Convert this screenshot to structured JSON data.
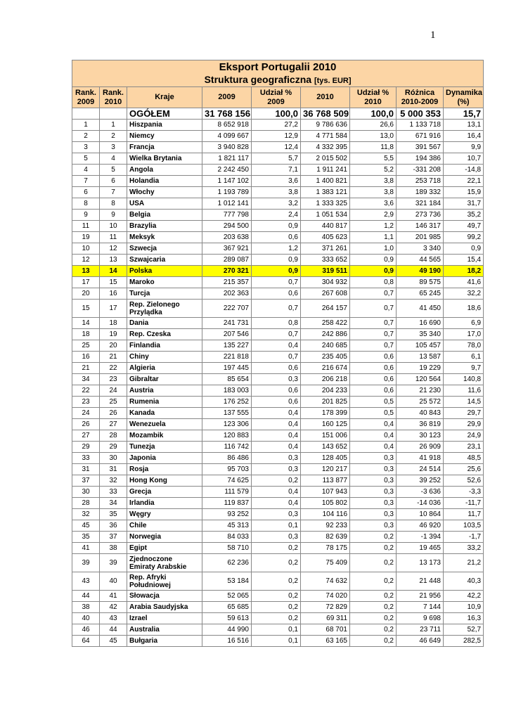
{
  "page_number": "1",
  "table": {
    "title": "Eksport Portugalii 2010",
    "subtitle": "Struktura geograficzna",
    "unit": "[tys. EUR]",
    "headers": [
      "Rank. 2009",
      "Rank. 2010",
      "Kraje",
      "2009",
      "Udział % 2009",
      "2010",
      "Udział % 2010",
      "Różnica 2010-2009",
      "Dynamika (%)"
    ],
    "total": [
      "",
      "",
      "OGÓŁEM",
      "31 768 156",
      "100,0",
      "36 768 509",
      "100,0",
      "5 000 353",
      "15,7"
    ],
    "highlight_color": "#ffff00",
    "header_color": "#fcd5a5",
    "highlight_country": "Polska",
    "rows": [
      [
        "1",
        "1",
        "Hiszpania",
        "8 652 918",
        "27,2",
        "9 786 636",
        "26,6",
        "1 133 718",
        "13,1"
      ],
      [
        "2",
        "2",
        "Niemcy",
        "4 099 667",
        "12,9",
        "4 771 584",
        "13,0",
        "671 916",
        "16,4"
      ],
      [
        "3",
        "3",
        "Francja",
        "3 940 828",
        "12,4",
        "4 332 395",
        "11,8",
        "391 567",
        "9,9"
      ],
      [
        "5",
        "4",
        "Wielka Brytania",
        "1 821 117",
        "5,7",
        "2 015 502",
        "5,5",
        "194 386",
        "10,7"
      ],
      [
        "4",
        "5",
        "Angola",
        "2 242 450",
        "7,1",
        "1 911 241",
        "5,2",
        "-331 208",
        "-14,8"
      ],
      [
        "7",
        "6",
        "Holandia",
        "1 147 102",
        "3,6",
        "1 400 821",
        "3,8",
        "253 718",
        "22,1"
      ],
      [
        "6",
        "7",
        "Włochy",
        "1 193 789",
        "3,8",
        "1 383 121",
        "3,8",
        "189 332",
        "15,9"
      ],
      [
        "8",
        "8",
        "USA",
        "1 012 141",
        "3,2",
        "1 333 325",
        "3,6",
        "321 184",
        "31,7"
      ],
      [
        "9",
        "9",
        "Belgia",
        "777 798",
        "2,4",
        "1 051 534",
        "2,9",
        "273 736",
        "35,2"
      ],
      [
        "11",
        "10",
        "Brazylia",
        "294 500",
        "0,9",
        "440 817",
        "1,2",
        "146 317",
        "49,7"
      ],
      [
        "19",
        "11",
        "Meksyk",
        "203 638",
        "0,6",
        "405 623",
        "1,1",
        "201 985",
        "99,2"
      ],
      [
        "10",
        "12",
        "Szwecja",
        "367 921",
        "1,2",
        "371 261",
        "1,0",
        "3 340",
        "0,9"
      ],
      [
        "12",
        "13",
        "Szwajcaria",
        "289 087",
        "0,9",
        "333 652",
        "0,9",
        "44 565",
        "15,4"
      ],
      [
        "13",
        "14",
        "Polska",
        "270 321",
        "0,9",
        "319 511",
        "0,9",
        "49 190",
        "18,2"
      ],
      [
        "17",
        "15",
        "Maroko",
        "215 357",
        "0,7",
        "304 932",
        "0,8",
        "89 575",
        "41,6"
      ],
      [
        "20",
        "16",
        "Turcja",
        "202 363",
        "0,6",
        "267 608",
        "0,7",
        "65 245",
        "32,2"
      ],
      [
        "15",
        "17",
        "Rep. Zielonego Przylądka",
        "222 707",
        "0,7",
        "264 157",
        "0,7",
        "41 450",
        "18,6"
      ],
      [
        "14",
        "18",
        "Dania",
        "241 731",
        "0,8",
        "258 422",
        "0,7",
        "16 690",
        "6,9"
      ],
      [
        "18",
        "19",
        "Rep. Czeska",
        "207 546",
        "0,7",
        "242 886",
        "0,7",
        "35 340",
        "17,0"
      ],
      [
        "25",
        "20",
        "Finlandia",
        "135 227",
        "0,4",
        "240 685",
        "0,7",
        "105 457",
        "78,0"
      ],
      [
        "16",
        "21",
        "Chiny",
        "221 818",
        "0,7",
        "235 405",
        "0,6",
        "13 587",
        "6,1"
      ],
      [
        "21",
        "22",
        "Algieria",
        "197 445",
        "0,6",
        "216 674",
        "0,6",
        "19 229",
        "9,7"
      ],
      [
        "34",
        "23",
        "Gibraltar",
        "85 654",
        "0,3",
        "206 218",
        "0,6",
        "120 564",
        "140,8"
      ],
      [
        "22",
        "24",
        "Austria",
        "183 003",
        "0,6",
        "204 233",
        "0,6",
        "21 230",
        "11,6"
      ],
      [
        "23",
        "25",
        "Rumenia",
        "176 252",
        "0,6",
        "201 825",
        "0,5",
        "25 572",
        "14,5"
      ],
      [
        "24",
        "26",
        "Kanada",
        "137 555",
        "0,4",
        "178 399",
        "0,5",
        "40 843",
        "29,7"
      ],
      [
        "26",
        "27",
        "Wenezuela",
        "123 306",
        "0,4",
        "160 125",
        "0,4",
        "36 819",
        "29,9"
      ],
      [
        "27",
        "28",
        "Mozambik",
        "120 883",
        "0,4",
        "151 006",
        "0,4",
        "30 123",
        "24,9"
      ],
      [
        "29",
        "29",
        "Tunezja",
        "116 742",
        "0,4",
        "143 652",
        "0,4",
        "26 909",
        "23,1"
      ],
      [
        "33",
        "30",
        "Japonia",
        "86 486",
        "0,3",
        "128 405",
        "0,3",
        "41 918",
        "48,5"
      ],
      [
        "31",
        "31",
        "Rosja",
        "95 703",
        "0,3",
        "120 217",
        "0,3",
        "24 514",
        "25,6"
      ],
      [
        "37",
        "32",
        "Hong Kong",
        "74 625",
        "0,2",
        "113 877",
        "0,3",
        "39 252",
        "52,6"
      ],
      [
        "30",
        "33",
        "Grecja",
        "111 579",
        "0,4",
        "107 943",
        "0,3",
        "-3 636",
        "-3,3"
      ],
      [
        "28",
        "34",
        "Irlandia",
        "119 837",
        "0,4",
        "105 802",
        "0,3",
        "-14 036",
        "-11,7"
      ],
      [
        "32",
        "35",
        "Węgry",
        "93 252",
        "0,3",
        "104 116",
        "0,3",
        "10 864",
        "11,7"
      ],
      [
        "45",
        "36",
        "Chile",
        "45 313",
        "0,1",
        "92 233",
        "0,3",
        "46 920",
        "103,5"
      ],
      [
        "35",
        "37",
        "Norwegia",
        "84 033",
        "0,3",
        "82 639",
        "0,2",
        "-1 394",
        "-1,7"
      ],
      [
        "41",
        "38",
        "Egipt",
        "58 710",
        "0,2",
        "78 175",
        "0,2",
        "19 465",
        "33,2"
      ],
      [
        "39",
        "39",
        "Zjednoczone Emiraty Arabskie",
        "62 236",
        "0,2",
        "75 409",
        "0,2",
        "13 173",
        "21,2"
      ],
      [
        "43",
        "40",
        "Rep. Afryki Południowej",
        "53 184",
        "0,2",
        "74 632",
        "0,2",
        "21 448",
        "40,3"
      ],
      [
        "44",
        "41",
        "Słowacja",
        "52 065",
        "0,2",
        "74 020",
        "0,2",
        "21 956",
        "42,2"
      ],
      [
        "38",
        "42",
        "Arabia Saudyjska",
        "65 685",
        "0,2",
        "72 829",
        "0,2",
        "7 144",
        "10,9"
      ],
      [
        "40",
        "43",
        "Izrael",
        "59 613",
        "0,2",
        "69 311",
        "0,2",
        "9 698",
        "16,3"
      ],
      [
        "46",
        "44",
        "Australia",
        "44 990",
        "0,1",
        "68 701",
        "0,2",
        "23 711",
        "52,7"
      ],
      [
        "64",
        "45",
        "Bułgaria",
        "16 516",
        "0,1",
        "63 165",
        "0,2",
        "46 649",
        "282,5"
      ]
    ]
  }
}
